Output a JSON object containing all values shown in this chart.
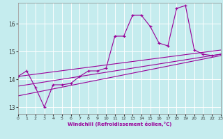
{
  "title": "",
  "xlabel": "Windchill (Refroidissement éolien,°C)",
  "background_color": "#c5ecee",
  "line_color": "#990099",
  "grid_color": "#ffffff",
  "xmin": 0,
  "xmax": 23,
  "ymin": 12.75,
  "ymax": 16.75,
  "yticks": [
    13,
    14,
    15,
    16
  ],
  "xticks": [
    0,
    1,
    2,
    3,
    4,
    5,
    6,
    7,
    8,
    9,
    10,
    11,
    12,
    13,
    14,
    15,
    16,
    17,
    18,
    19,
    20,
    21,
    22,
    23
  ],
  "series1_x": [
    0,
    1,
    2,
    3,
    4,
    5,
    6,
    7,
    8,
    9,
    10,
    11,
    12,
    13,
    14,
    15,
    16,
    17,
    18,
    19,
    20,
    21,
    22,
    23
  ],
  "series1_y": [
    14.1,
    14.3,
    13.7,
    13.0,
    13.8,
    13.8,
    13.85,
    14.1,
    14.3,
    14.3,
    14.4,
    15.55,
    15.55,
    16.3,
    16.3,
    15.9,
    15.3,
    15.2,
    16.55,
    16.65,
    15.05,
    14.9,
    14.85,
    14.9
  ],
  "line2_x0": 0,
  "line2_x1": 23,
  "line2_y0": 14.1,
  "line2_y1": 15.05,
  "line3_x0": 0,
  "line3_x1": 23,
  "line3_y0": 13.75,
  "line3_y1": 14.9,
  "line4_x0": 0,
  "line4_x1": 23,
  "line4_y0": 13.4,
  "line4_y1": 14.85
}
